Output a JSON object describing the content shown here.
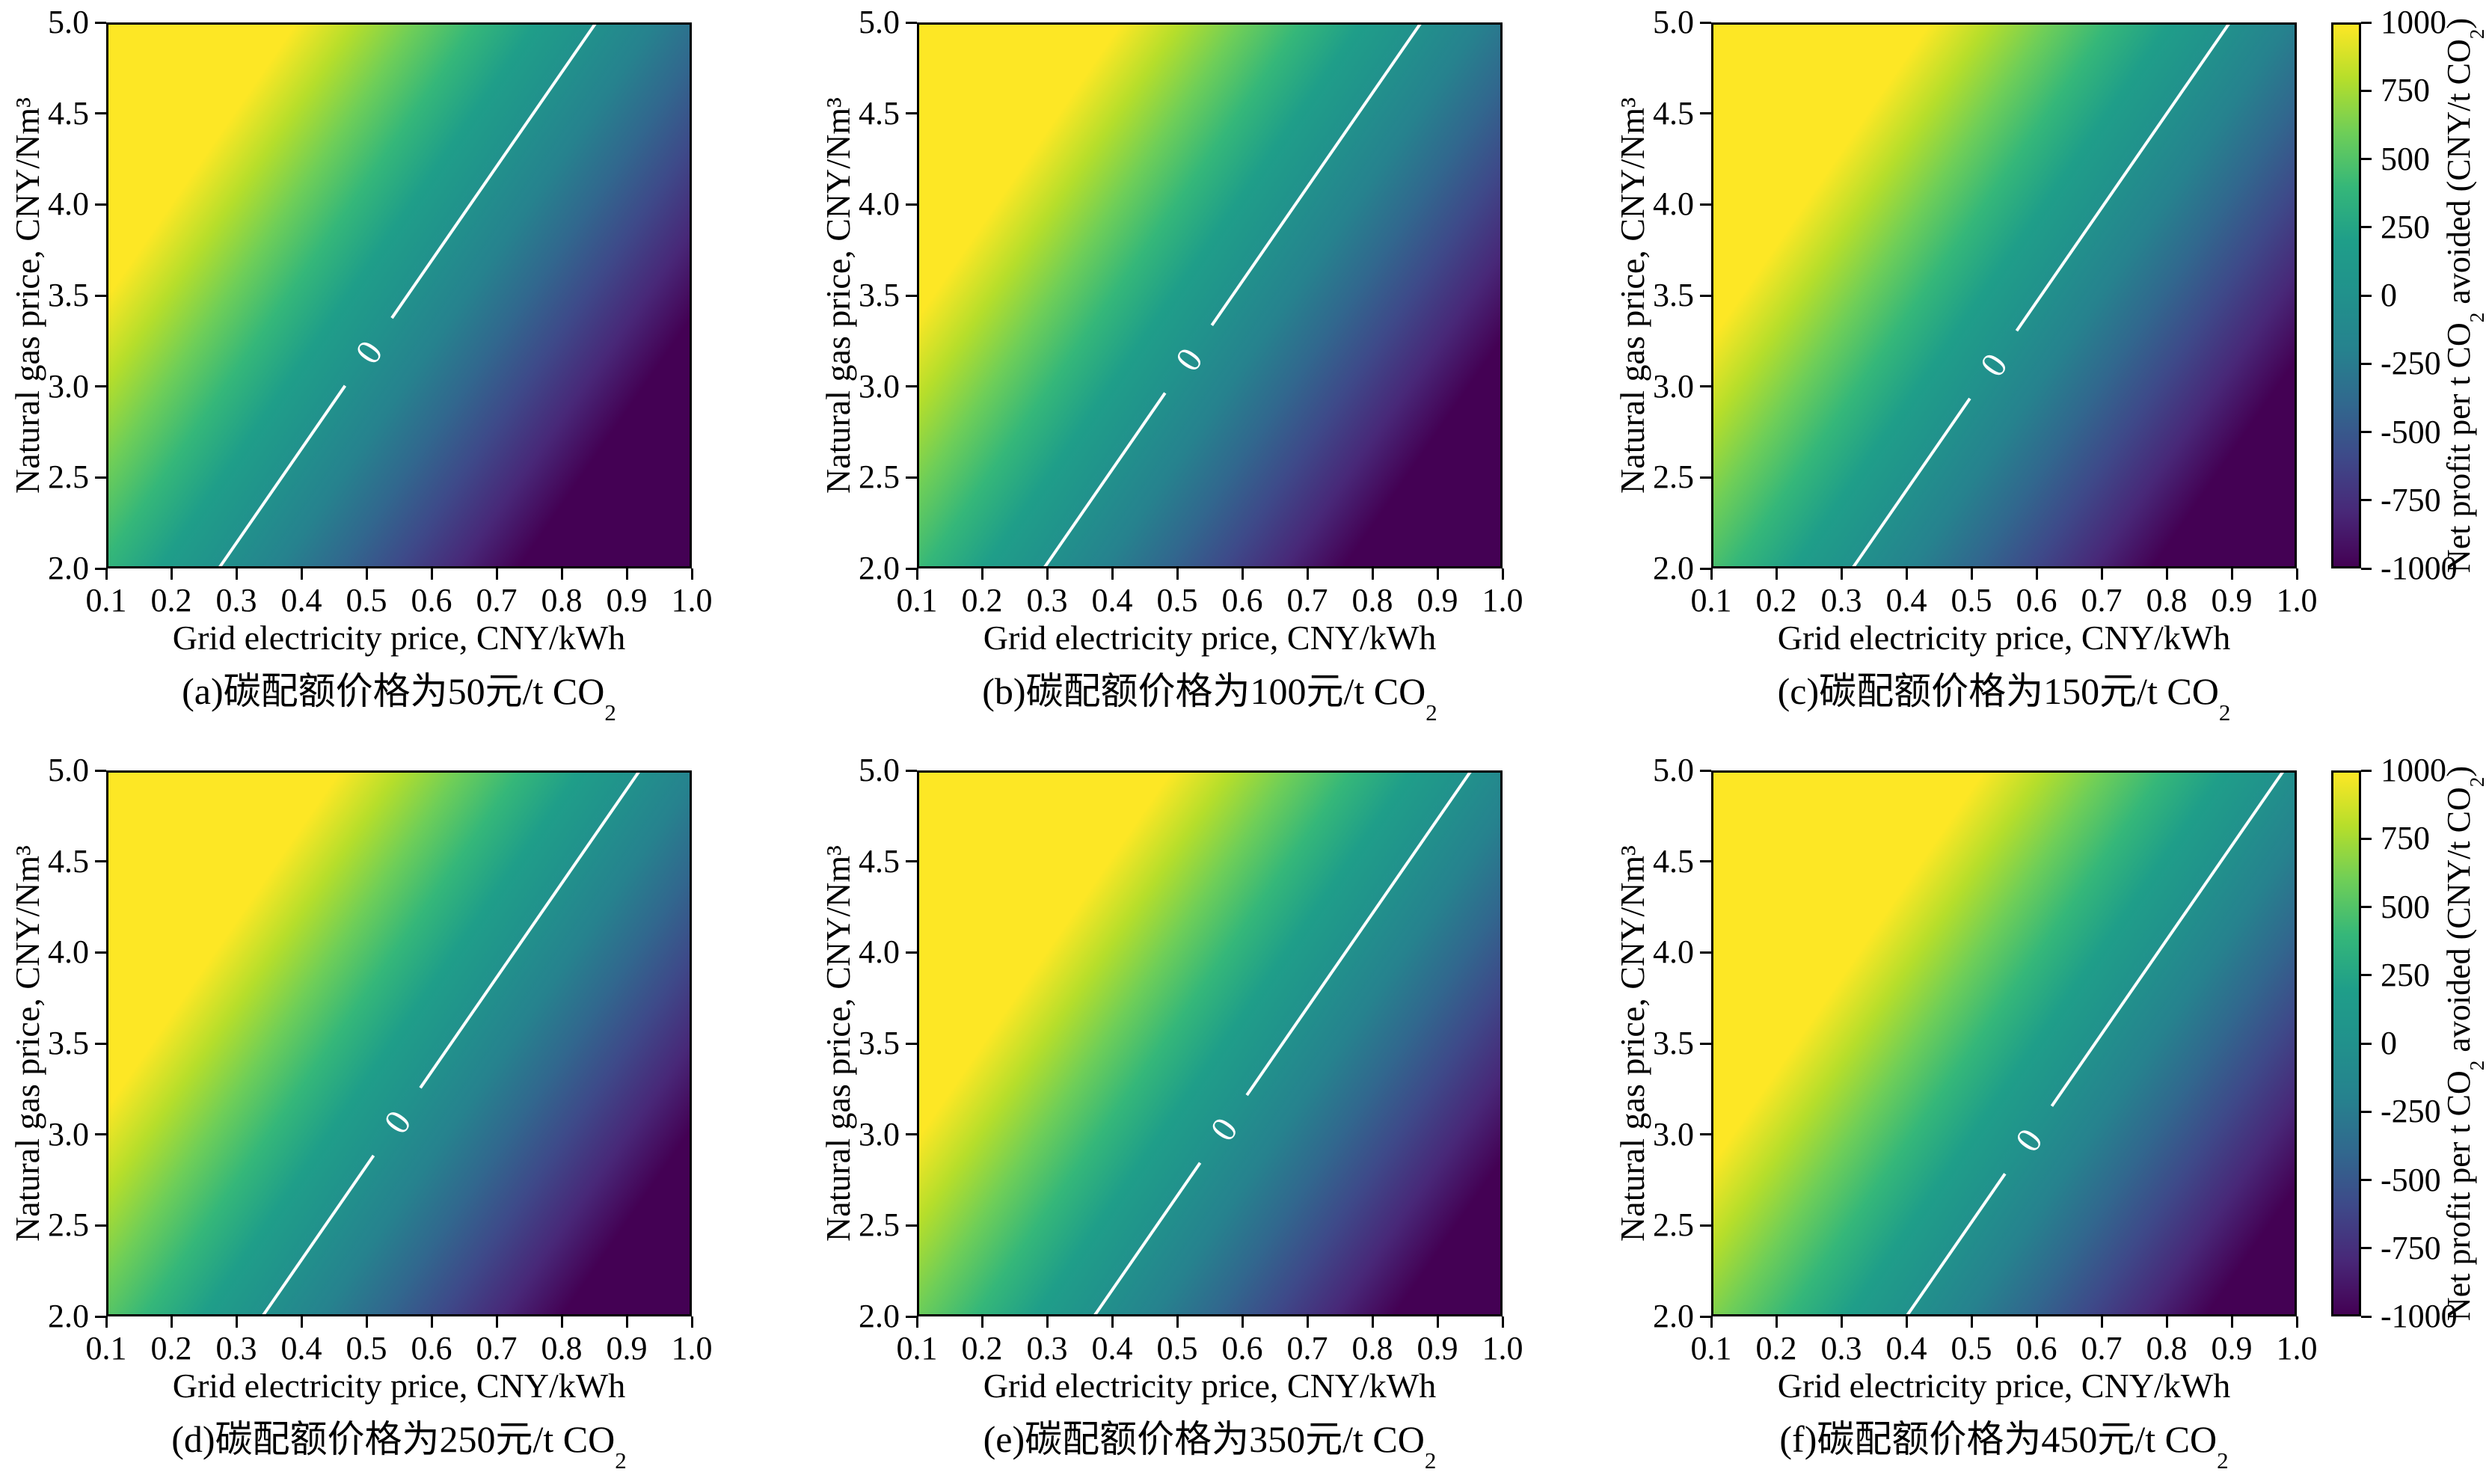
{
  "figure_title": "",
  "axes": {
    "x_label": "Grid electricity price, CNY/kWh",
    "y_label": "Natural gas price, CNY/Nm³",
    "x_ticks": [
      "0.1",
      "0.2",
      "0.3",
      "0.4",
      "0.5",
      "0.6",
      "0.7",
      "0.8",
      "0.9",
      "1.0"
    ],
    "y_ticks": [
      "5.0",
      "4.5",
      "4.0",
      "3.5",
      "3.0",
      "2.5",
      "2.0"
    ]
  },
  "colorbar": {
    "label_parts": [
      "Net profit per t CO",
      "2",
      " avoided (CNY/t CO",
      "2",
      ")"
    ],
    "ticks": [
      "1000",
      "750",
      "500",
      "250",
      "0",
      "-250",
      "-500",
      "-750",
      "-1000"
    ]
  },
  "chart_data": {
    "type": "heatmap",
    "x": {
      "label": "Grid electricity price, CNY/kWh",
      "range": [
        0.1,
        1.0
      ]
    },
    "y": {
      "label": "Natural gas price, CNY/Nm³",
      "range": [
        2.0,
        5.0
      ]
    },
    "value": {
      "label": "Net profit per t CO2 avoided (CNY/t CO2)",
      "range": [
        -1000,
        1000
      ],
      "tick_step": 250,
      "saturation_dx": 0.46
    },
    "colormap": {
      "name": "viridis",
      "stops": [
        {
          "t": 0.0,
          "c": "#440154"
        },
        {
          "t": 0.1,
          "c": "#482878"
        },
        {
          "t": 0.2,
          "c": "#3e4989"
        },
        {
          "t": 0.3,
          "c": "#31688e"
        },
        {
          "t": 0.4,
          "c": "#26828e"
        },
        {
          "t": 0.5,
          "c": "#21918c"
        },
        {
          "t": 0.6,
          "c": "#1f9e89"
        },
        {
          "t": 0.7,
          "c": "#35b779"
        },
        {
          "t": 0.8,
          "c": "#6ece58"
        },
        {
          "t": 0.9,
          "c": "#b5de2b"
        },
        {
          "t": 1.0,
          "c": "#fde725"
        }
      ]
    },
    "panels": [
      {
        "id": "a",
        "carbon_quota_price_cny_per_t": 50,
        "caption_parts": [
          "(a)碳配额价格为50元/t CO",
          "2"
        ],
        "zero_contour": {
          "x_at_y_min": 0.273,
          "x_at_y_max": 0.853,
          "label": "0",
          "label_y": 3.19
        }
      },
      {
        "id": "b",
        "carbon_quota_price_cny_per_t": 100,
        "caption_parts": [
          "(b)碳配额价格为100元/t CO",
          "2"
        ],
        "zero_contour": {
          "x_at_y_min": 0.295,
          "x_at_y_max": 0.875,
          "label": "0",
          "label_y": 3.15
        }
      },
      {
        "id": "c",
        "carbon_quota_price_cny_per_t": 150,
        "caption_parts": [
          "(c)碳配额价格为150元/t CO",
          "2"
        ],
        "zero_contour": {
          "x_at_y_min": 0.317,
          "x_at_y_max": 0.897,
          "label": "0",
          "label_y": 3.12
        }
      },
      {
        "id": "d",
        "carbon_quota_price_cny_per_t": 250,
        "caption_parts": [
          "(d)碳配额价格为250元/t CO",
          "2"
        ],
        "zero_contour": {
          "x_at_y_min": 0.34,
          "x_at_y_max": 0.92,
          "label": "0",
          "label_y": 3.07
        }
      },
      {
        "id": "e",
        "carbon_quota_price_cny_per_t": 350,
        "caption_parts": [
          "(e)碳配额价格为350元/t CO",
          "2"
        ],
        "zero_contour": {
          "x_at_y_min": 0.372,
          "x_at_y_max": 0.952,
          "label": "0",
          "label_y": 3.03
        }
      },
      {
        "id": "f",
        "carbon_quota_price_cny_per_t": 450,
        "caption_parts": [
          "(f)碳配额价格为450元/t CO",
          "2"
        ],
        "zero_contour": {
          "x_at_y_min": 0.4,
          "x_at_y_max": 0.98,
          "label": "0",
          "label_y": 2.97
        }
      }
    ]
  }
}
